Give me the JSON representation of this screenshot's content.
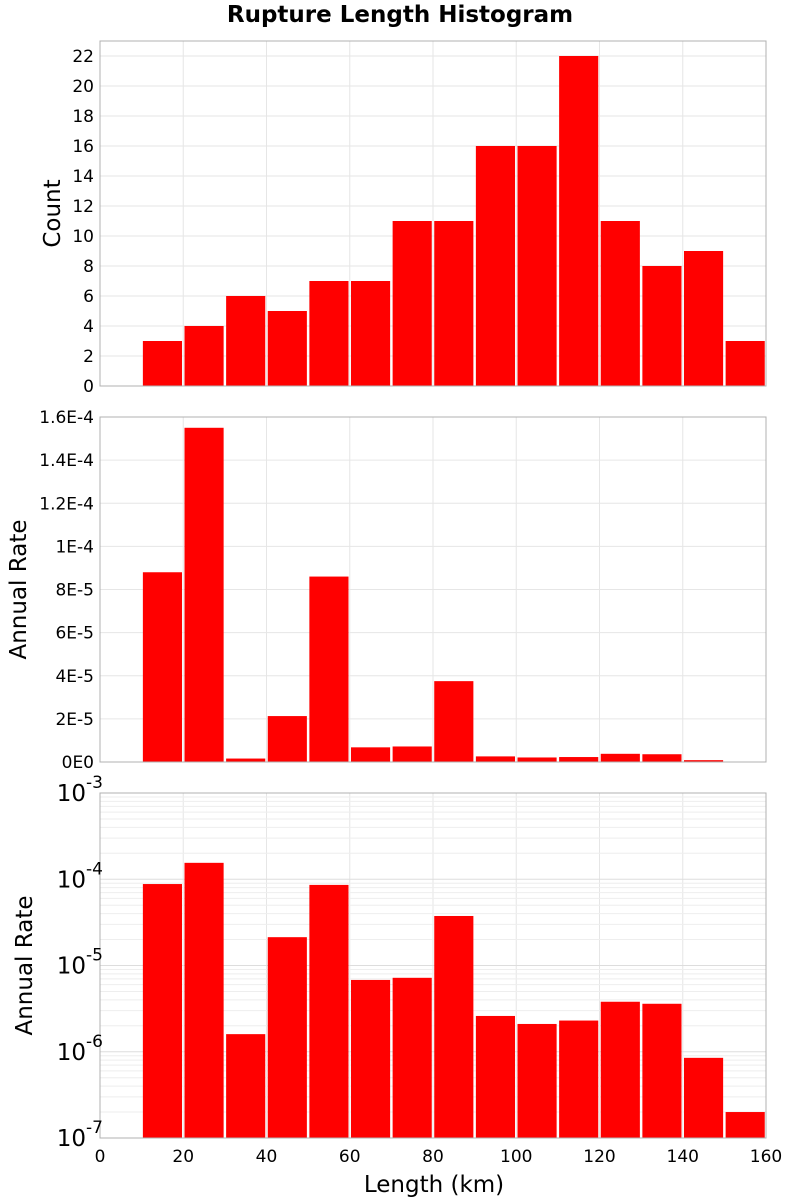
{
  "page_title": "Rupture Length Histogram",
  "chart_data": [
    {
      "type": "bar",
      "title": "Rupture Length Histogram",
      "xlabel": "Length (km)",
      "ylabel": "Count",
      "x": [
        15,
        25,
        35,
        45,
        55,
        65,
        75,
        85,
        95,
        105,
        115,
        125,
        135,
        145,
        155
      ],
      "values": [
        3,
        4,
        6,
        5,
        7,
        7,
        11,
        11,
        16,
        16,
        22,
        11,
        8,
        9,
        3
      ],
      "xlim": [
        0,
        160
      ],
      "ylim": [
        0,
        23
      ],
      "yticks": [
        0,
        2,
        4,
        6,
        8,
        10,
        12,
        14,
        16,
        18,
        20,
        22
      ],
      "ytick_labels": [
        "0",
        "2",
        "4",
        "6",
        "8",
        "10",
        "12",
        "14",
        "16",
        "18",
        "20",
        "22"
      ],
      "color": "#ff0000",
      "grid": true
    },
    {
      "type": "bar",
      "xlabel": "Length (km)",
      "ylabel": "Annual Rate",
      "x": [
        15,
        25,
        35,
        45,
        55,
        65,
        75,
        85,
        95,
        105,
        115,
        125,
        135,
        145,
        155
      ],
      "values": [
        8.8e-05,
        0.000155,
        1.6e-06,
        2.13e-05,
        8.6e-05,
        6.8e-06,
        7.2e-06,
        3.75e-05,
        2.6e-06,
        2.1e-06,
        2.3e-06,
        3.8e-06,
        3.6e-06,
        8.5e-07,
        2e-07
      ],
      "xlim": [
        0,
        160
      ],
      "ylim": [
        0,
        0.00016
      ],
      "yticks": [
        0,
        2e-05,
        4e-05,
        6e-05,
        8e-05,
        0.0001,
        0.00012,
        0.00014,
        0.00016
      ],
      "ytick_labels": [
        "0E0",
        "2E-5",
        "4E-5",
        "6E-5",
        "8E-5",
        "1E-4",
        "1.2E-4",
        "1.4E-4",
        "1.6E-4"
      ],
      "color": "#ff0000",
      "grid": true
    },
    {
      "type": "bar",
      "xlabel": "Length (km)",
      "ylabel": "Annual Rate",
      "yscale": "log",
      "x": [
        15,
        25,
        35,
        45,
        55,
        65,
        75,
        85,
        95,
        105,
        115,
        125,
        135,
        145,
        155
      ],
      "values": [
        8.8e-05,
        0.000155,
        1.6e-06,
        2.13e-05,
        8.6e-05,
        6.8e-06,
        7.2e-06,
        3.75e-05,
        2.6e-06,
        2.1e-06,
        2.3e-06,
        3.8e-06,
        3.6e-06,
        8.5e-07,
        2e-07
      ],
      "xlim": [
        0,
        160
      ],
      "ylim": [
        1e-07,
        0.001
      ],
      "yticks": [
        1e-07,
        1e-06,
        1e-05,
        0.0001,
        0.001
      ],
      "ytick_labels": [
        {
          "base": "10",
          "exp": "-7"
        },
        {
          "base": "10",
          "exp": "-6"
        },
        {
          "base": "10",
          "exp": "-5"
        },
        {
          "base": "10",
          "exp": "-4"
        },
        {
          "base": "10",
          "exp": "-3"
        }
      ],
      "xticks": [
        0,
        20,
        40,
        60,
        80,
        100,
        120,
        140,
        160
      ],
      "xtick_labels": [
        "0",
        "20",
        "40",
        "60",
        "80",
        "100",
        "120",
        "140",
        "160"
      ],
      "color": "#ff0000",
      "grid": true
    }
  ]
}
